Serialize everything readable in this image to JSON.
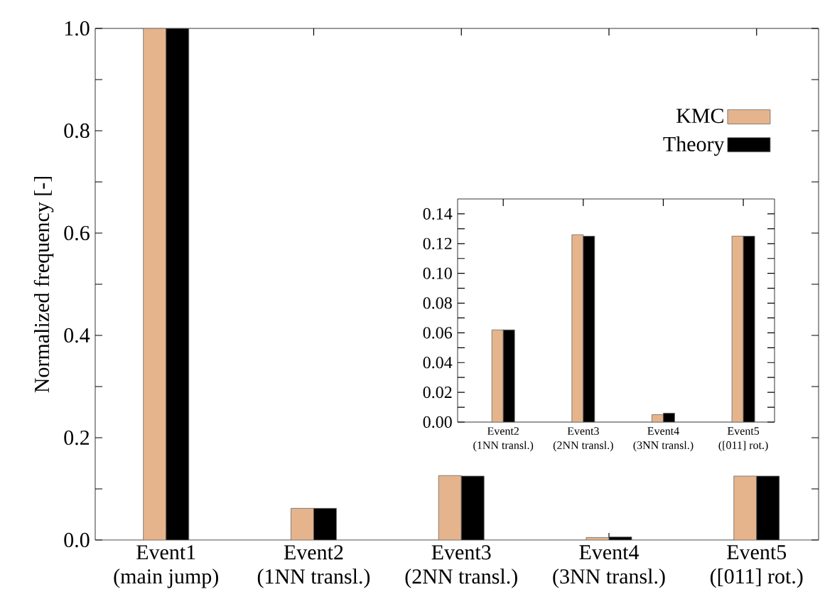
{
  "chart_data": [
    {
      "type": "bar",
      "ylabel": "Normalized frequency [-]",
      "categories": [
        "Event1\n(main jump)",
        "Event2\n(1NN transl.)",
        "Event3\n(2NN transl.)",
        "Event4\n(3NN transl.)",
        "Event5\n([011] rot.)"
      ],
      "series": [
        {
          "name": "KMC",
          "color": "#e6b48c",
          "values": [
            1.0,
            0.062,
            0.126,
            0.005,
            0.125
          ]
        },
        {
          "name": "Theory",
          "color": "#000000",
          "values": [
            1.0,
            0.062,
            0.125,
            0.006,
            0.125
          ]
        }
      ],
      "ylim": [
        0,
        1.0
      ],
      "yticks": [
        {
          "value": 0,
          "label": "0.0"
        },
        {
          "value": 0.1,
          "label": null
        },
        0.2,
        {
          "value": 0.3,
          "label": null
        },
        0.4,
        {
          "value": 0.5,
          "label": null
        },
        0.6,
        {
          "value": 0.7,
          "label": null
        },
        0.8,
        {
          "value": 0.9,
          "label": null
        },
        {
          "value": 1.0,
          "label": "1.0"
        }
      ],
      "legend": "top right"
    },
    {
      "type": "bar",
      "categories": [
        "Event2\n(1NN transl.)",
        "Event3\n(2NN transl.)",
        "Event4\n(3NN transl.)",
        "Event5\n([011] rot.)"
      ],
      "series": [
        {
          "color": "#e6b48c",
          "values": [
            0.062,
            0.126,
            0.005,
            0.125
          ]
        },
        {
          "color": "#000000",
          "values": [
            0.062,
            0.125,
            0.006,
            0.125
          ]
        }
      ],
      "ylim": [
        0,
        0.15
      ],
      "yticks": [
        {
          "value": 0,
          "label": "0.00"
        },
        {
          "value": 0.01,
          "label": null
        },
        {
          "value": 0.02,
          "label": "0.02"
        },
        {
          "value": 0.03,
          "label": null
        },
        {
          "value": 0.04,
          "label": "0.04"
        },
        {
          "value": 0.05,
          "label": null
        },
        {
          "value": 0.06,
          "label": "0.06"
        },
        {
          "value": 0.07,
          "label": null
        },
        {
          "value": 0.08,
          "label": "0.08"
        },
        {
          "value": 0.09,
          "label": null
        },
        {
          "value": 0.1,
          "label": "0.10"
        },
        {
          "value": 0.11,
          "label": null
        },
        {
          "value": 0.12,
          "label": "0.12"
        },
        {
          "value": 0.13,
          "label": null
        },
        {
          "value": 0.14,
          "label": "0.14"
        }
      ]
    }
  ]
}
